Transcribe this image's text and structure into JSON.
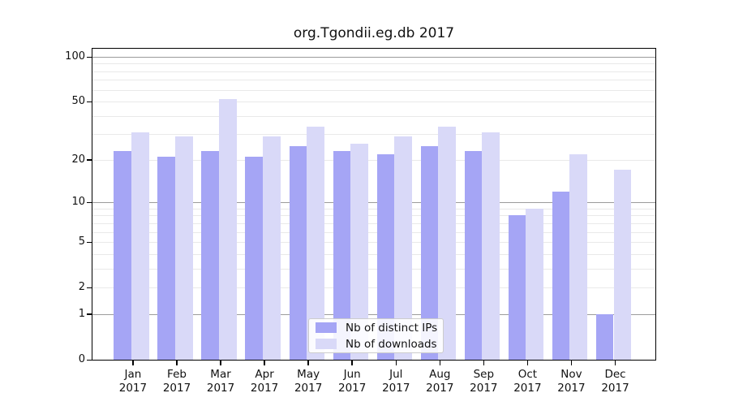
{
  "chart_data": {
    "type": "bar",
    "title": "org.Tgondii.eg.db 2017",
    "categories": [
      "Jan",
      "Feb",
      "Mar",
      "Apr",
      "May",
      "Jun",
      "Jul",
      "Aug",
      "Sep",
      "Oct",
      "Nov",
      "Dec"
    ],
    "year_label": "2017",
    "series": [
      {
        "name": "Nb of distinct IPs",
        "color": "#a5a5f5",
        "values": [
          23,
          21,
          23,
          21,
          25,
          23,
          22,
          25,
          23,
          8,
          12,
          1
        ]
      },
      {
        "name": "Nb of downloads",
        "color": "#d9d9f8",
        "values": [
          31,
          29,
          52,
          29,
          34,
          26,
          29,
          34,
          31,
          9,
          22,
          17
        ]
      }
    ],
    "y_axis": {
      "scale": "log1p",
      "tick_labels": [
        "0",
        "1",
        "2",
        "5",
        "10",
        "20",
        "50",
        "100"
      ],
      "tick_values": [
        0,
        1,
        2,
        5,
        10,
        20,
        50,
        100
      ],
      "minor_grid_values": [
        2,
        3,
        4,
        5,
        6,
        7,
        8,
        9,
        20,
        30,
        40,
        50,
        60,
        70,
        80,
        90
      ],
      "major_grid_values": [
        1,
        10,
        100
      ],
      "ylim": [
        0,
        100
      ]
    },
    "grid": "on",
    "legend_position": "bottom-center-inside"
  },
  "colors": {
    "distinct_ips_bar": "#a5a5f5",
    "downloads_bar": "#d9d9f8",
    "major_grid": "#9b9b9b",
    "minor_grid": "#e9e9e9",
    "frame": "#000000",
    "text": "#111111"
  }
}
